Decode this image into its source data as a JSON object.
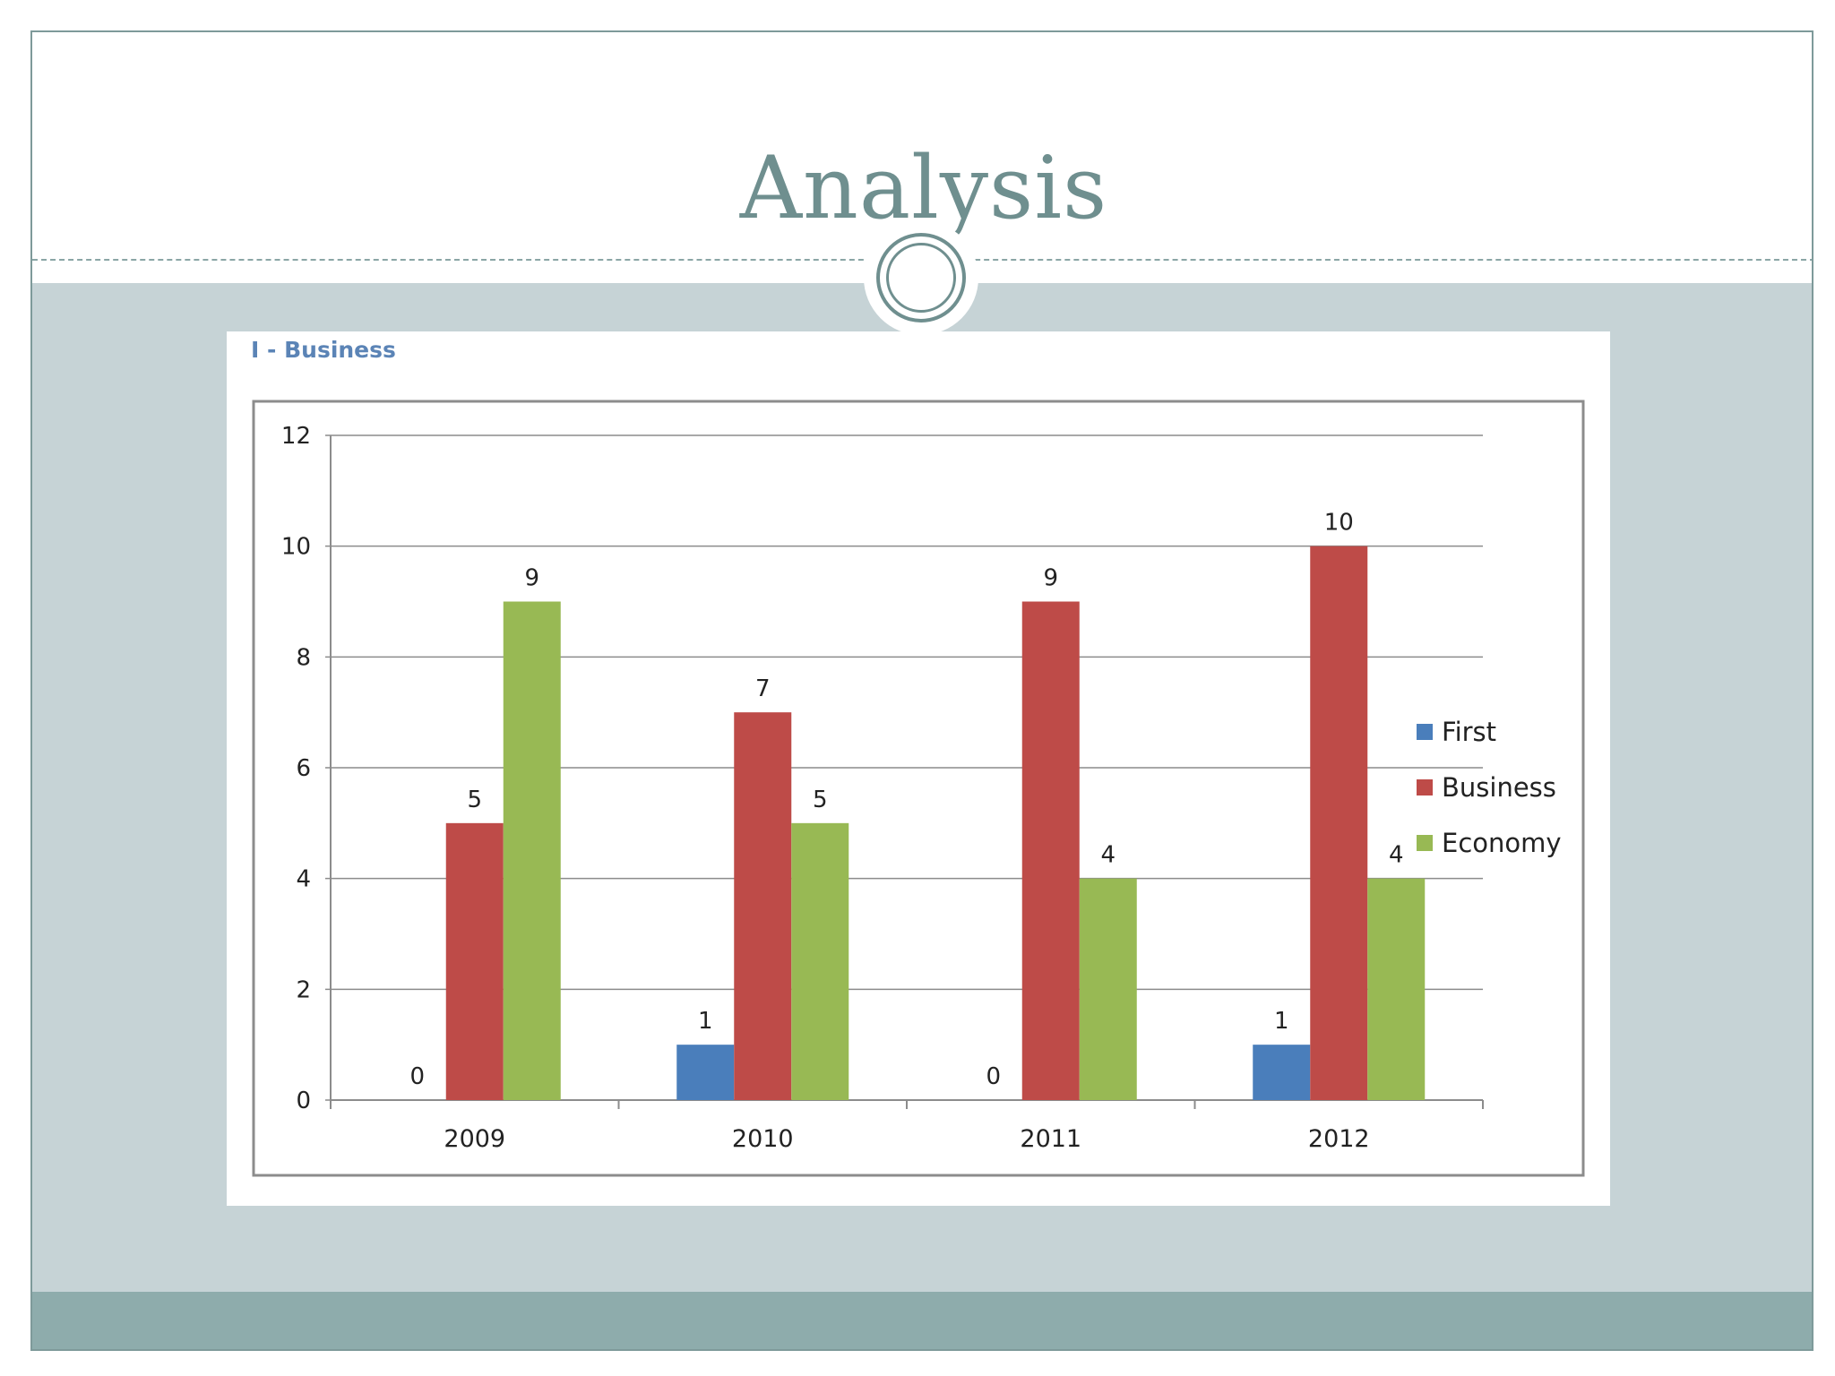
{
  "slide": {
    "title": "Analysis"
  },
  "chart_data": {
    "type": "bar",
    "title": "I - Business",
    "categories": [
      "2009",
      "2010",
      "2011",
      "2012"
    ],
    "series": [
      {
        "name": "First",
        "color": "#4a7ebb",
        "values": [
          0,
          1,
          0,
          1
        ]
      },
      {
        "name": "Business",
        "color": "#be4b48",
        "values": [
          5,
          7,
          9,
          10
        ]
      },
      {
        "name": "Economy",
        "color": "#98b954",
        "values": [
          9,
          5,
          4,
          4
        ]
      }
    ],
    "ylim": [
      0,
      12
    ],
    "yticks": [
      "0",
      "2",
      "4",
      "6",
      "8",
      "10",
      "12"
    ],
    "grid": true,
    "legend": "right",
    "data_labels": true
  }
}
